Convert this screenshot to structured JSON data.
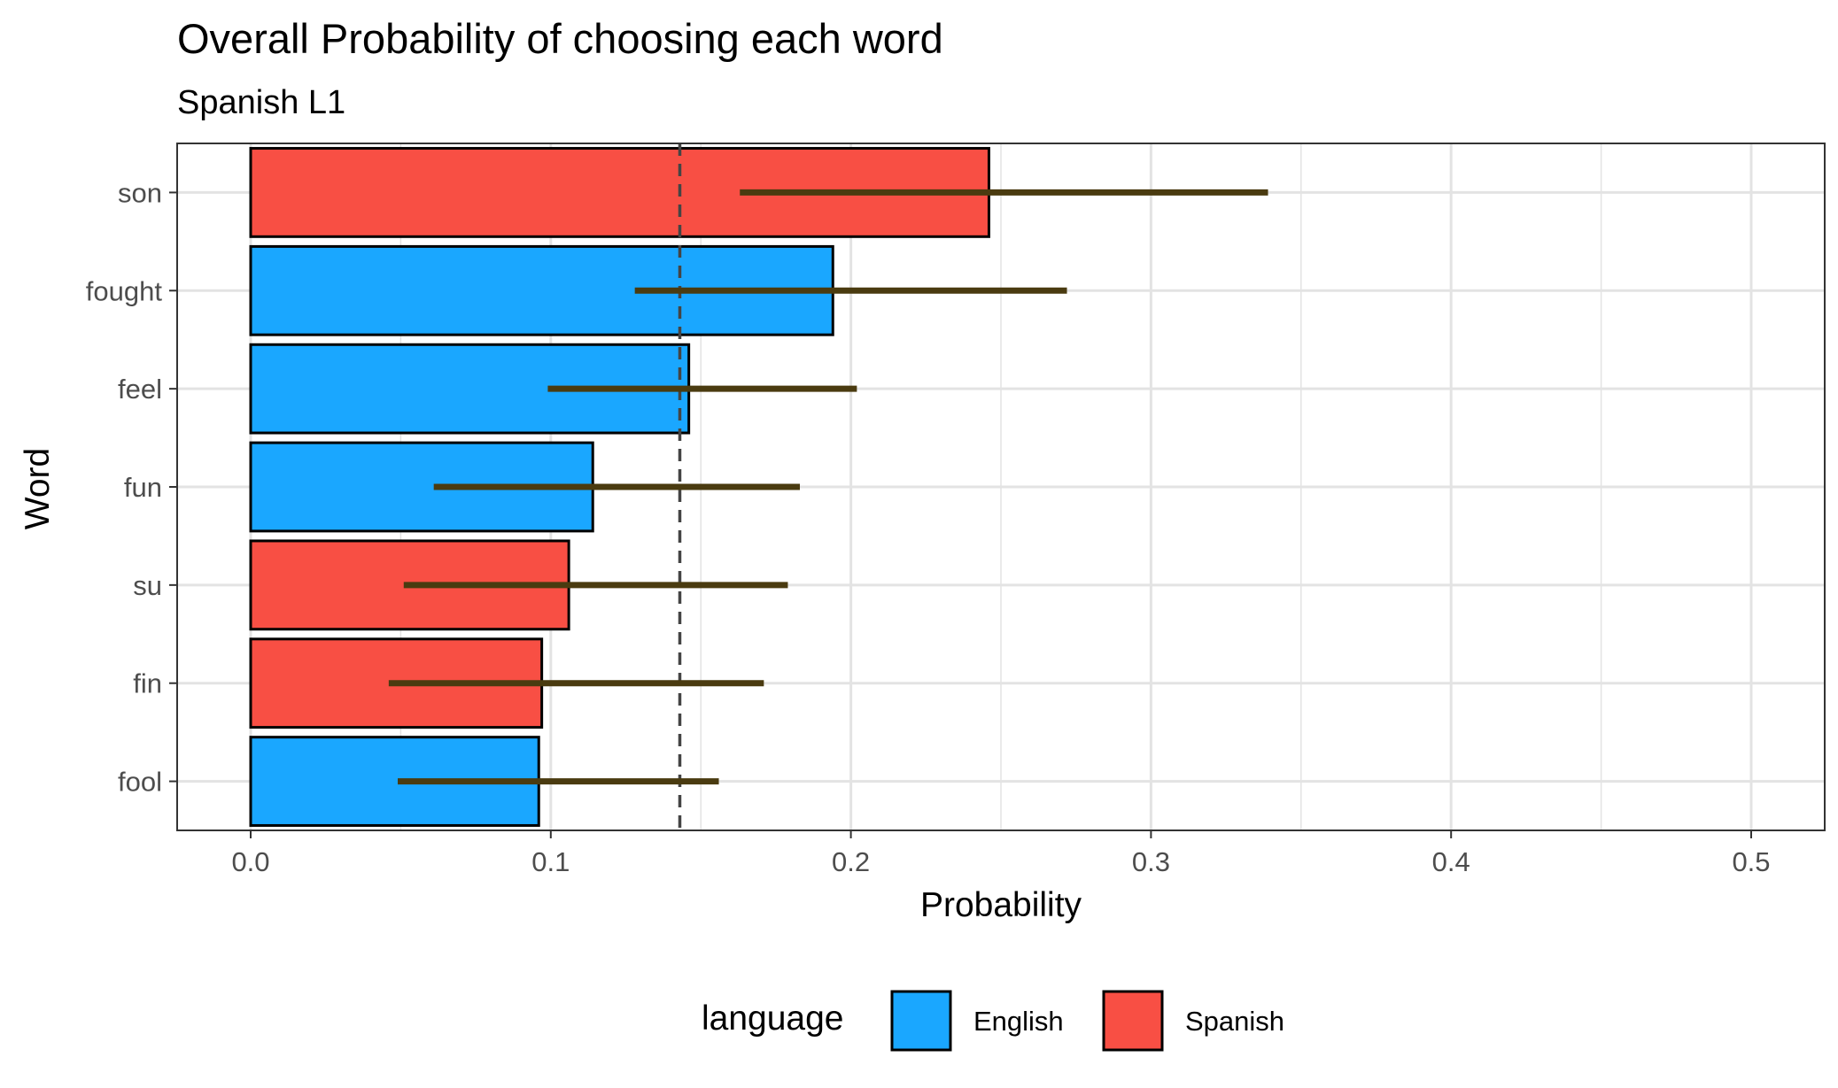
{
  "chart_data": {
    "type": "bar",
    "orientation": "horizontal",
    "title": "Overall Probability of choosing each word",
    "subtitle": "Spanish L1",
    "xlabel": "Probability",
    "ylabel": "Word",
    "xlim": [
      -0.025,
      0.525
    ],
    "xticks": [
      "0.0",
      "0.1",
      "0.2",
      "0.3",
      "0.4",
      "0.5"
    ],
    "grid": true,
    "reference_line": {
      "value": 0.143,
      "style": "dashed"
    },
    "categories": [
      "son",
      "fought",
      "feel",
      "fun",
      "su",
      "fin",
      "fool"
    ],
    "values": [
      0.246,
      0.194,
      0.146,
      0.114,
      0.106,
      0.097,
      0.096
    ],
    "error_low": [
      0.163,
      0.128,
      0.099,
      0.061,
      0.051,
      0.046,
      0.049
    ],
    "error_high": [
      0.339,
      0.272,
      0.202,
      0.183,
      0.179,
      0.171,
      0.156
    ],
    "language": [
      "Spanish",
      "English",
      "English",
      "English",
      "Spanish",
      "Spanish",
      "English"
    ],
    "legend": {
      "title": "language",
      "position": "bottom",
      "entries": [
        {
          "name": "English",
          "color": "#1aa7ff"
        },
        {
          "name": "Spanish",
          "color": "#f84f44"
        }
      ]
    },
    "colors": {
      "English": "#1aa7ff",
      "Spanish": "#f84f44",
      "error_bar": "#4a3b10",
      "reference_line": "#444444",
      "grid": "#e3e3e3"
    }
  }
}
